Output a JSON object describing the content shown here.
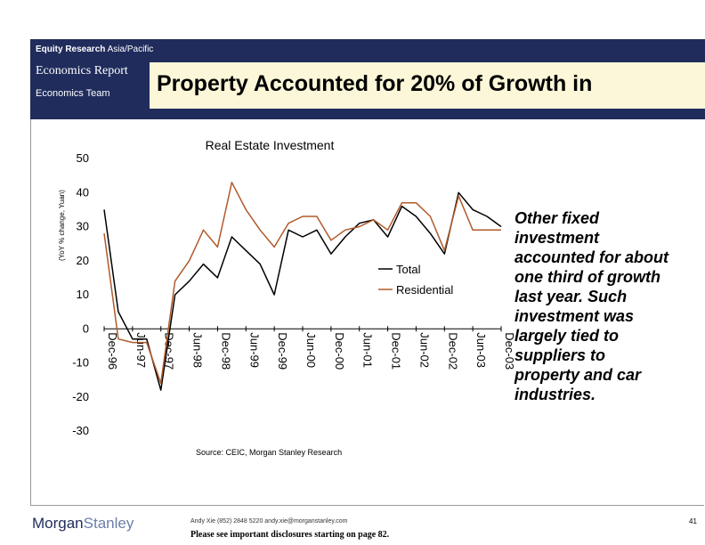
{
  "header": {
    "department": "Equity Research",
    "region": "Asia/Pacific",
    "report_type": "Economics Report",
    "team": "Economics Team"
  },
  "slide_title": "Property Accounted for 20% of Growth in",
  "side_note": "Other fixed investment accounted for about one third of growth last year.  Such investment was largely tied to suppliers to property and car industries.",
  "footer": {
    "logo_part1": "Morgan",
    "logo_part2": "Stanley",
    "contact": "Andy Xie (852) 2848 5220  andy.xie@morganstanley.com",
    "disclosure": "Please see important disclosures starting on page 82.",
    "page_number": "41"
  },
  "colors": {
    "total": "#000000",
    "residential": "#b05a2a",
    "header_bg": "#1f2c5c",
    "title_bg": "#fbf7d8"
  },
  "chart_data": {
    "type": "line",
    "title": "Real Estate Investment",
    "ylabel": "(YoY % change, Yuan)",
    "xlabel": "",
    "source": "Source: CEIC, Morgan Stanley Research",
    "ylim": [
      -30,
      50
    ],
    "yticks": [
      -30,
      -20,
      -10,
      0,
      10,
      20,
      30,
      40,
      50
    ],
    "xtick_labels": [
      "Dec-96",
      "Jun-97",
      "Dec-97",
      "Jun-98",
      "Dec-98",
      "Jun-99",
      "Dec-99",
      "Jun-00",
      "Dec-00",
      "Jun-01",
      "Dec-01",
      "Jun-02",
      "Dec-02",
      "Jun-03",
      "Dec-03"
    ],
    "legend_position": "center-right",
    "n_points": 29,
    "series": [
      {
        "name": "Total",
        "values": [
          35,
          5,
          -3,
          -3,
          -18,
          10,
          14,
          19,
          15,
          27,
          23,
          19,
          10,
          29,
          27,
          29,
          22,
          27,
          31,
          32,
          27,
          36,
          33,
          28,
          22,
          40,
          35,
          33,
          30
        ]
      },
      {
        "name": "Residential",
        "values": [
          28,
          -3,
          -4,
          -4,
          -16,
          14,
          20,
          29,
          24,
          43,
          35,
          29,
          24,
          31,
          33,
          33,
          26,
          29,
          30,
          32,
          29,
          37,
          37,
          33,
          23,
          39,
          29,
          29,
          29
        ]
      }
    ]
  }
}
